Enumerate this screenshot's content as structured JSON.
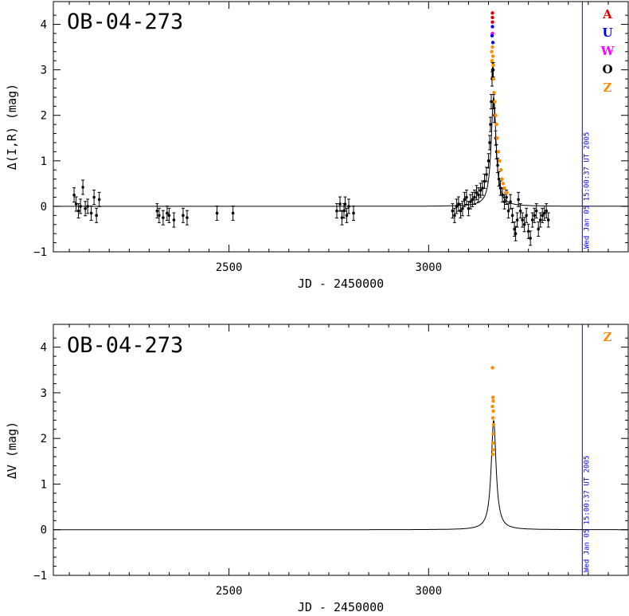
{
  "chart_data": [
    {
      "type": "scatter",
      "title": "OB-04-273",
      "xlabel": "JD - 2450000",
      "ylabel": "Δ(I,R) (mag)",
      "xlim": [
        2060,
        3500
      ],
      "ylim": [
        -1,
        4.5
      ],
      "x_ticks": [
        2500,
        3000
      ],
      "y_ticks": [
        -1,
        0,
        1,
        2,
        3,
        4
      ],
      "timestamp": "Wed Jan 05 15:00:37 UT 2005",
      "timestamp_x": 3385,
      "legend": [
        {
          "label": "A",
          "color": "#e00000"
        },
        {
          "label": "U",
          "color": "#0000ff"
        },
        {
          "label": "W",
          "color": "#ff00ff"
        },
        {
          "label": "O",
          "color": "#000000"
        },
        {
          "label": "Z",
          "color": "#ff8c00"
        }
      ],
      "model": {
        "t0": 3163,
        "peak": 2.4,
        "tE": 18,
        "color": "#000000"
      },
      "series": [
        {
          "name": "O",
          "color": "#000000",
          "points": [
            [
              2112,
              0.25
            ],
            [
              2117,
              0.05
            ],
            [
              2123,
              -0.1
            ],
            [
              2128,
              0.0
            ],
            [
              2134,
              0.42
            ],
            [
              2140,
              -0.05
            ],
            [
              2146,
              0.0
            ],
            [
              2155,
              -0.15
            ],
            [
              2162,
              0.2
            ],
            [
              2168,
              -0.2
            ],
            [
              2175,
              0.15
            ],
            [
              2320,
              -0.1
            ],
            [
              2325,
              -0.2
            ],
            [
              2335,
              -0.25
            ],
            [
              2345,
              -0.15
            ],
            [
              2350,
              -0.2
            ],
            [
              2362,
              -0.3
            ],
            [
              2385,
              -0.2
            ],
            [
              2395,
              -0.25
            ],
            [
              2470,
              -0.15
            ],
            [
              2510,
              -0.15
            ],
            [
              2770,
              -0.1
            ],
            [
              2778,
              0.05
            ],
            [
              2783,
              -0.25
            ],
            [
              2788,
              -0.1
            ],
            [
              2791,
              0.05
            ],
            [
              2795,
              -0.2
            ],
            [
              2800,
              0.0
            ],
            [
              2812,
              -0.15
            ],
            [
              3060,
              -0.1
            ],
            [
              3065,
              -0.2
            ],
            [
              3070,
              0.0
            ],
            [
              3075,
              0.05
            ],
            [
              3080,
              -0.1
            ],
            [
              3085,
              -0.05
            ],
            [
              3090,
              0.15
            ],
            [
              3095,
              0.2
            ],
            [
              3100,
              -0.05
            ],
            [
              3105,
              0.1
            ],
            [
              3110,
              0.15
            ],
            [
              3115,
              0.2
            ],
            [
              3120,
              0.3
            ],
            [
              3125,
              0.25
            ],
            [
              3130,
              0.35
            ],
            [
              3135,
              0.4
            ],
            [
              3140,
              0.55
            ],
            [
              3145,
              0.7
            ],
            [
              3150,
              1.0
            ],
            [
              3153,
              1.4
            ],
            [
              3155,
              1.8
            ],
            [
              3157,
              2.3
            ],
            [
              3159,
              2.8
            ],
            [
              3160,
              3.0
            ],
            [
              3162,
              3.0
            ],
            [
              3163,
              2.3
            ],
            [
              3165,
              2.0
            ],
            [
              3168,
              1.5
            ],
            [
              3170,
              1.2
            ],
            [
              3173,
              0.9
            ],
            [
              3176,
              0.6
            ],
            [
              3180,
              0.4
            ],
            [
              3185,
              0.25
            ],
            [
              3190,
              0.1
            ],
            [
              3195,
              0.2
            ],
            [
              3200,
              -0.1
            ],
            [
              3205,
              0.1
            ],
            [
              3210,
              -0.2
            ],
            [
              3215,
              -0.5
            ],
            [
              3218,
              -0.6
            ],
            [
              3222,
              -0.3
            ],
            [
              3225,
              0.15
            ],
            [
              3230,
              -0.1
            ],
            [
              3235,
              -0.3
            ],
            [
              3240,
              -0.4
            ],
            [
              3245,
              -0.2
            ],
            [
              3250,
              -0.55
            ],
            [
              3255,
              -0.7
            ],
            [
              3260,
              -0.3
            ],
            [
              3265,
              -0.2
            ],
            [
              3270,
              -0.1
            ],
            [
              3275,
              -0.5
            ],
            [
              3280,
              -0.3
            ],
            [
              3285,
              -0.2
            ],
            [
              3290,
              -0.15
            ],
            [
              3295,
              -0.1
            ],
            [
              3300,
              -0.3
            ]
          ]
        },
        {
          "name": "Z",
          "color": "#ff8c00",
          "points": [
            [
              3158,
              3.4
            ],
            [
              3159,
              3.2
            ],
            [
              3160,
              3.5
            ],
            [
              3161,
              3.3
            ],
            [
              3162,
              3.1
            ],
            [
              3163,
              2.8
            ],
            [
              3164,
              2.5
            ],
            [
              3166,
              2.3
            ],
            [
              3168,
              2.0
            ],
            [
              3170,
              1.8
            ],
            [
              3172,
              1.5
            ],
            [
              3175,
              1.2
            ],
            [
              3178,
              1.0
            ],
            [
              3181,
              0.8
            ],
            [
              3184,
              0.6
            ],
            [
              3187,
              0.5
            ],
            [
              3190,
              0.4
            ],
            [
              3193,
              0.3
            ],
            [
              3196,
              0.3
            ]
          ]
        },
        {
          "name": "W",
          "color": "#ff00ff",
          "points": [
            [
              3160,
              3.8
            ]
          ]
        },
        {
          "name": "U",
          "color": "#0000ff",
          "points": [
            [
              3159,
              3.75
            ],
            [
              3160,
              3.95
            ],
            [
              3161,
              3.6
            ]
          ]
        },
        {
          "name": "A",
          "color": "#e00000",
          "points": [
            [
              3160,
              4.25
            ],
            [
              3160,
              4.15
            ],
            [
              3160,
              4.05
            ]
          ]
        }
      ]
    },
    {
      "type": "scatter",
      "title": "OB-04-273",
      "xlabel": "JD - 2450000",
      "ylabel": "ΔV (mag)",
      "xlim": [
        2060,
        3500
      ],
      "ylim": [
        -1,
        4.5
      ],
      "x_ticks": [
        2500,
        3000
      ],
      "y_ticks": [
        -1,
        0,
        1,
        2,
        3,
        4
      ],
      "timestamp": "Wed Jan 05 15:00:37 UT 2005",
      "timestamp_x": 3385,
      "legend": [
        {
          "label": "Z",
          "color": "#ff8c00"
        }
      ],
      "model": {
        "t0": 3163,
        "peak": 2.4,
        "tE": 18,
        "color": "#000000"
      },
      "series": [
        {
          "name": "Z",
          "color": "#ff8c00",
          "points": [
            [
              3160,
              3.55
            ],
            [
              3161,
              2.9
            ],
            [
              3162,
              2.82
            ],
            [
              3160,
              2.7
            ],
            [
              3162,
              2.6
            ],
            [
              3161,
              2.45
            ],
            [
              3163,
              2.3
            ],
            [
              3162,
              2.1
            ],
            [
              3161,
              1.9
            ],
            [
              3162,
              1.75
            ],
            [
              3161,
              1.65
            ]
          ]
        }
      ]
    }
  ]
}
